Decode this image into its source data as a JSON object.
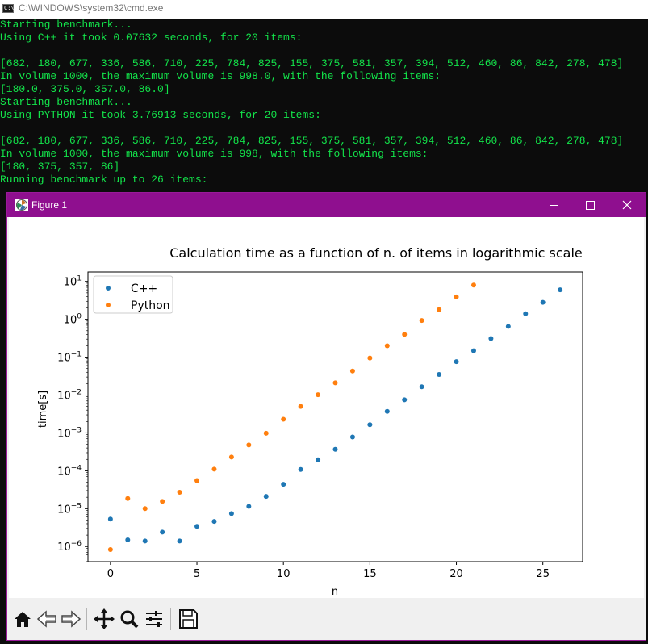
{
  "cmd": {
    "title": "C:\\WINDOWS\\system32\\cmd.exe",
    "icon_text": "C:\\",
    "lines": [
      "Starting benchmark...",
      "Using C++ it took 0.07632 seconds, for 20 items:",
      "",
      "[682, 180, 677, 336, 586, 710, 225, 784, 825, 155, 375, 581, 357, 394, 512, 460, 86, 842, 278, 478]",
      "In volume 1000, the maximum volume is 998.0, with the following items:",
      "[180.0, 375.0, 357.0, 86.0]",
      "Starting benchmark...",
      "Using PYTHON it took 3.76913 seconds, for 20 items:",
      "",
      "[682, 180, 677, 336, 586, 710, 225, 784, 825, 155, 375, 581, 357, 394, 512, 460, 86, 842, 278, 478]",
      "In volume 1000, the maximum volume is 998, with the following items:",
      "[180, 375, 357, 86]",
      "Running benchmark up to 26 items:"
    ],
    "text_color": "#13e34a"
  },
  "figure": {
    "title": "Figure 1",
    "titlebar_color": "#8f0f8f",
    "toolbar": [
      "home-icon",
      "back-icon",
      "forward-icon",
      "pan-icon",
      "zoom-icon",
      "configure-subplots-icon",
      "save-icon"
    ]
  },
  "chart_data": {
    "type": "scatter",
    "title": "Calculation time as a function of n. of items in logarithmic scale",
    "xlabel": "n",
    "ylabel": "time[s]",
    "yscale": "log",
    "xlim": [
      -1.3,
      27.3
    ],
    "ylim_exp": [
      -6.4,
      1.25
    ],
    "x_ticks": [
      0,
      5,
      10,
      15,
      20,
      25
    ],
    "y_tick_exponents": [
      -6,
      -5,
      -4,
      -3,
      -2,
      -1,
      0,
      1
    ],
    "legend_position": "top-left",
    "grid": false,
    "series": [
      {
        "name": "C++",
        "color": "#1f77b4",
        "x": [
          0,
          1,
          2,
          3,
          4,
          5,
          6,
          7,
          8,
          9,
          10,
          11,
          12,
          13,
          14,
          15,
          16,
          17,
          18,
          19,
          20,
          21,
          22,
          23,
          24,
          25,
          26
        ],
        "y": [
          5.3e-06,
          1.5e-06,
          1.4e-06,
          2.4e-06,
          1.4e-06,
          3.4e-06,
          4.6e-06,
          7.4e-06,
          1.15e-05,
          2.1e-05,
          4.4e-05,
          0.000108,
          0.000195,
          0.00037,
          0.00078,
          0.00165,
          0.0037,
          0.0075,
          0.0165,
          0.035,
          0.076,
          0.148,
          0.31,
          0.65,
          1.4,
          2.8,
          6.0
        ]
      },
      {
        "name": "Python",
        "color": "#ff7f0e",
        "x": [
          0,
          1,
          2,
          3,
          4,
          5,
          6,
          7,
          8,
          9,
          10,
          11,
          12,
          13,
          14,
          15,
          16,
          17,
          18,
          19,
          20,
          21
        ],
        "y": [
          8.3e-07,
          1.85e-05,
          1e-05,
          1.55e-05,
          2.7e-05,
          5.5e-05,
          0.00011,
          0.00023,
          0.00048,
          0.00098,
          0.0023,
          0.005,
          0.0102,
          0.021,
          0.043,
          0.095,
          0.2,
          0.4,
          0.93,
          1.8,
          3.9,
          8.0
        ]
      }
    ]
  }
}
